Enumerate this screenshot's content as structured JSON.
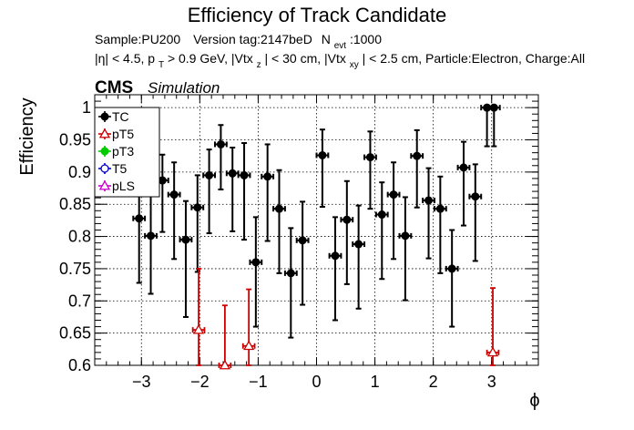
{
  "chart_data": {
    "type": "scatter",
    "title": "Efficiency of Track Candidate",
    "subtitle_line1": {
      "sample": "Sample:PU200",
      "version": "Version tag:2147beD",
      "nevt_base": "N",
      "nevt_sub": "evt",
      "nevt_value": ":1000"
    },
    "subtitle_line2": {
      "seg1": "|η| < 4.5, p",
      "seg1_sub": "T",
      "seg2": " > 0.9 GeV, |Vtx",
      "seg2_sub": "z",
      "seg3": "| < 30 cm, |Vtx",
      "seg3_sub": "xy",
      "seg4": "| < 2.5 cm, Particle:Electron, Charge:All"
    },
    "cms_label": "CMS",
    "simulation_label": "Simulation",
    "xlabel": "ϕ",
    "ylabel": "Efficiency",
    "xlim": [
      -3.8,
      3.8
    ],
    "ylim": [
      0.6,
      1.02
    ],
    "xticks": [
      -3,
      -2,
      -1,
      0,
      1,
      2,
      3
    ],
    "yticks": [
      0.6,
      0.65,
      0.7,
      0.75,
      0.8,
      0.85,
      0.9,
      0.95,
      1
    ],
    "ytick_labels": [
      "0.6",
      "0.65",
      "0.7",
      "0.75",
      "0.8",
      "0.85",
      "0.9",
      "0.95",
      "1"
    ],
    "grid": true,
    "legend": {
      "position": "top-left",
      "entries": [
        {
          "name": "TC",
          "color": "#000000",
          "marker": "filled-circle"
        },
        {
          "name": "pT5",
          "color": "#cc0000",
          "marker": "open-triangle"
        },
        {
          "name": "pT3",
          "color": "#00cc00",
          "marker": "filled-circle"
        },
        {
          "name": "T5",
          "color": "#0000cc",
          "marker": "open-circle"
        },
        {
          "name": "pLS",
          "color": "#cc00cc",
          "marker": "open-triangle"
        }
      ]
    },
    "series": [
      {
        "name": "TC",
        "color": "#000000",
        "marker": "filled-circle",
        "x_err": 0.1,
        "x": [
          -3.04,
          -2.84,
          -2.64,
          -2.44,
          -2.24,
          -2.04,
          -1.84,
          -1.64,
          -1.44,
          -1.24,
          -1.04,
          -0.84,
          -0.64,
          -0.44,
          -0.24,
          0.1,
          0.32,
          0.52,
          0.72,
          0.92,
          1.12,
          1.32,
          1.52,
          1.72,
          1.92,
          2.12,
          2.32,
          2.52,
          2.72,
          2.92,
          3.04
        ],
        "y": [
          0.828,
          0.801,
          0.887,
          0.865,
          0.795,
          0.845,
          0.895,
          0.943,
          0.898,
          0.895,
          0.76,
          0.893,
          0.843,
          0.743,
          0.794,
          0.926,
          0.77,
          0.826,
          0.788,
          0.923,
          0.834,
          0.865,
          0.801,
          0.925,
          0.856,
          0.843,
          0.75,
          0.907,
          0.862,
          1.0,
          1.0
        ],
        "y_err_low": [
          0.1,
          0.09,
          0.08,
          0.1,
          0.12,
          0.1,
          0.09,
          0.07,
          0.09,
          0.1,
          0.1,
          0.1,
          0.1,
          0.1,
          0.1,
          0.08,
          0.1,
          0.1,
          0.1,
          0.08,
          0.1,
          0.1,
          0.1,
          0.08,
          0.09,
          0.1,
          0.09,
          0.09,
          0.1,
          0.06,
          0.06
        ],
        "y_err_high": [
          0.06,
          0.07,
          0.04,
          0.05,
          0.06,
          0.05,
          0.04,
          0.03,
          0.04,
          0.05,
          0.07,
          0.05,
          0.06,
          0.07,
          0.06,
          0.04,
          0.06,
          0.06,
          0.06,
          0.04,
          0.05,
          0.05,
          0.06,
          0.04,
          0.05,
          0.05,
          0.06,
          0.04,
          0.05,
          0.0,
          0.0
        ]
      },
      {
        "name": "pT5",
        "color": "#cc0000",
        "marker": "open-triangle",
        "x_err": 0.1,
        "x": [
          -2.02,
          -1.57,
          -1.16,
          3.02
        ],
        "y": [
          0.655,
          0.6,
          0.63,
          0.62
        ],
        "y_err_low": [
          0.06,
          0.0,
          0.03,
          0.02
        ],
        "y_err_high": [
          0.095,
          0.093,
          0.088,
          0.1
        ]
      }
    ]
  }
}
